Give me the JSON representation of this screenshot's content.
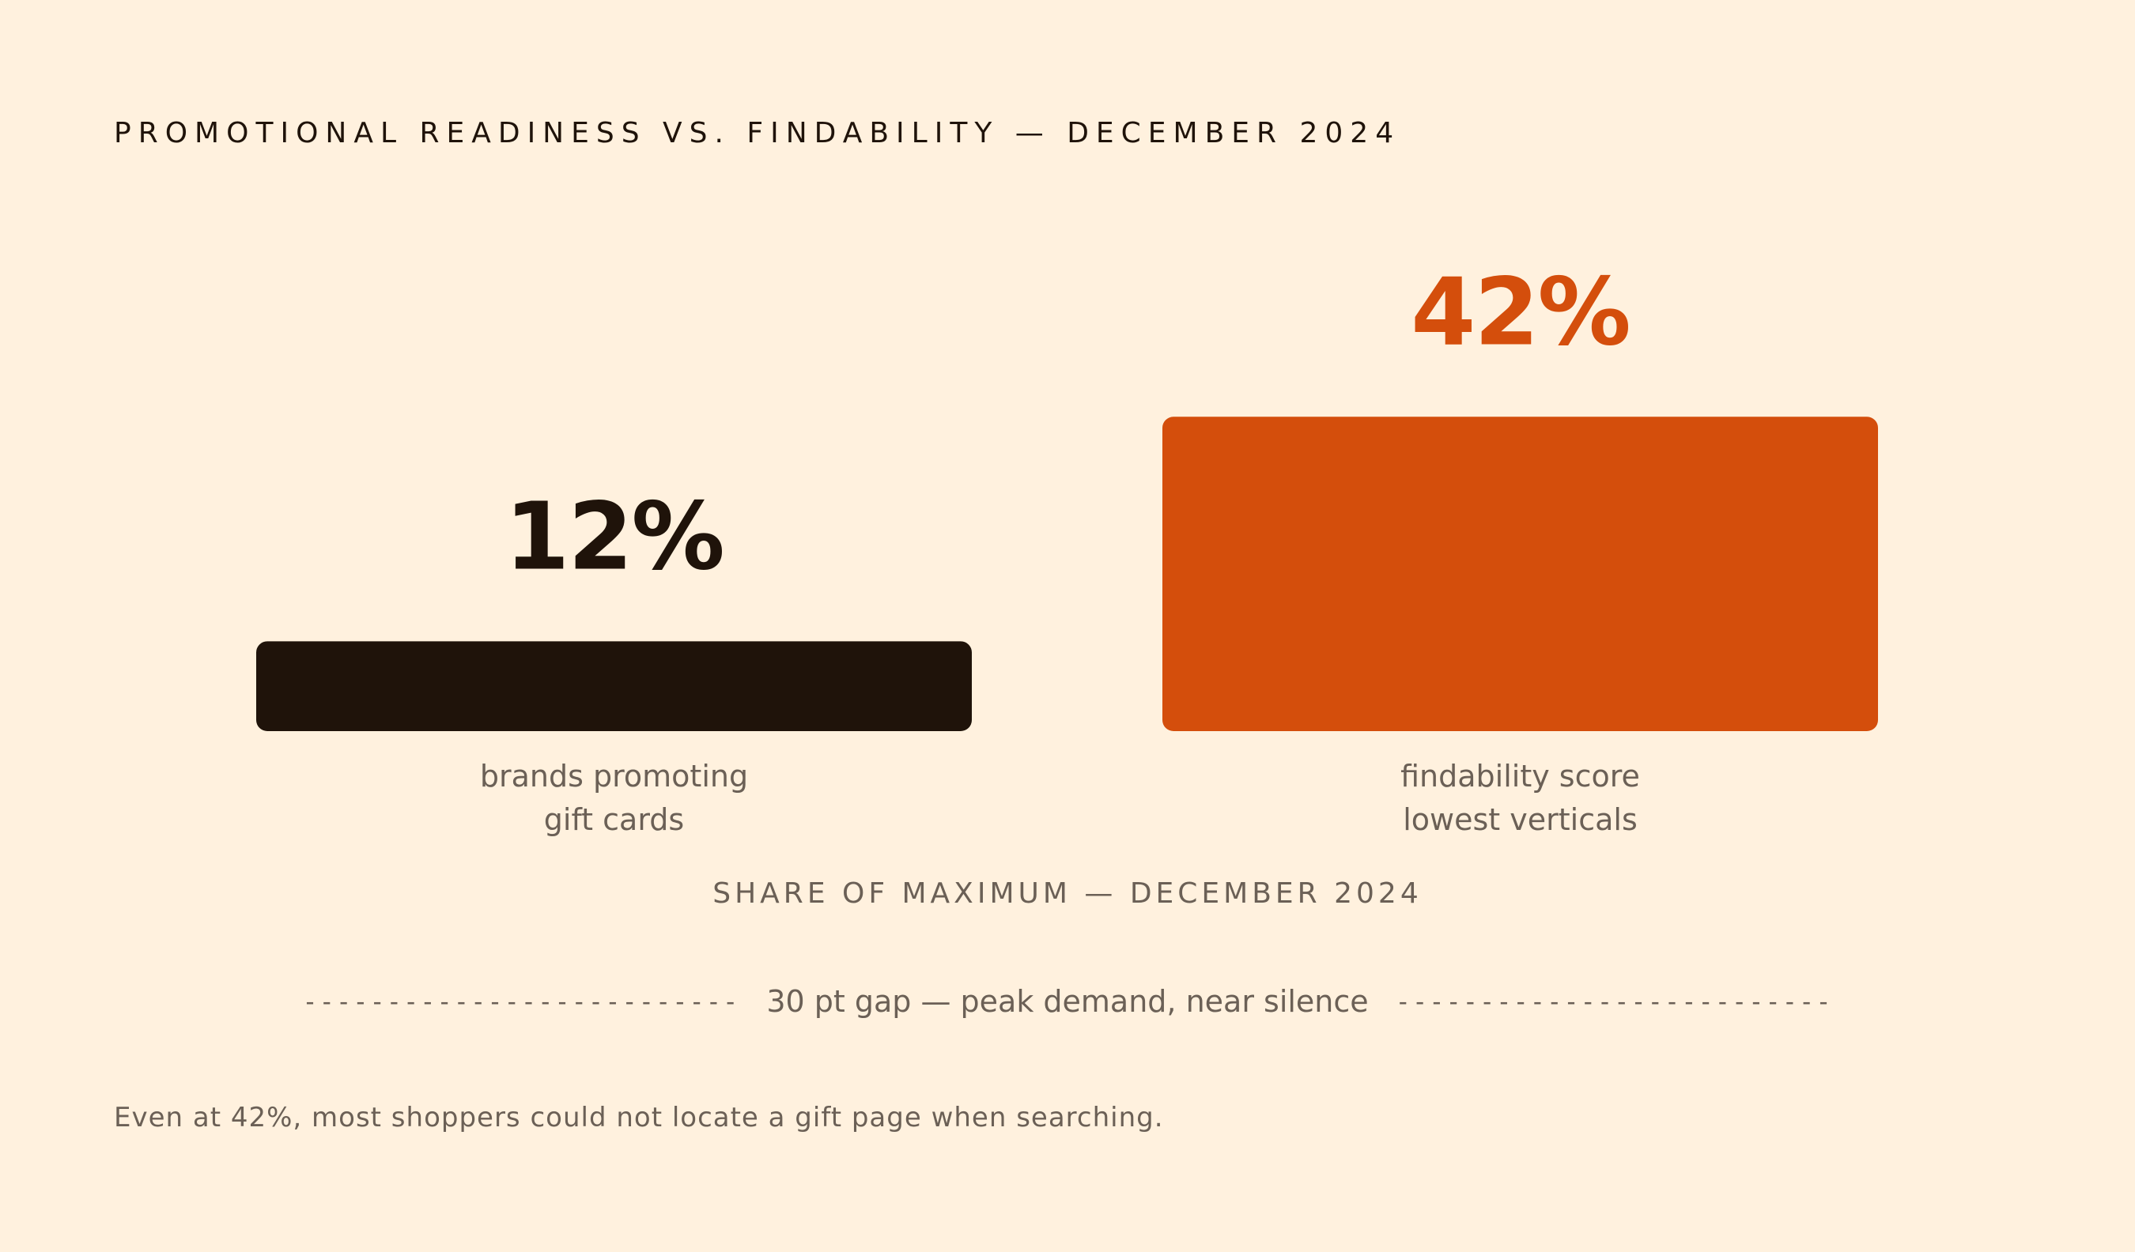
{
  "title": "PROMOTIONAL READINESS VS. FINDABILITY — DECEMBER 2024",
  "subtitle": "SHARE OF MAXIMUM — DECEMBER 2024",
  "gap": {
    "dashes_left": "--------------------------",
    "label": "30 pt gap — peak demand, near silence",
    "dashes_right": "--------------------------"
  },
  "footnote": "Even at 42%, most shoppers could not locate a gift page when searching.",
  "colors": {
    "background": "#FFF1DE",
    "dark": "#1F130A",
    "accent": "#D44E0C",
    "muted": "#6B6056"
  },
  "chart_data": {
    "type": "bar",
    "title": "PROMOTIONAL READINESS VS. FINDABILITY — DECEMBER 2024",
    "subtitle": "SHARE OF MAXIMUM — DECEMBER 2024",
    "unit": "%",
    "ylim": [
      0,
      100
    ],
    "grid": false,
    "categories": [
      [
        "brands promoting",
        "gift cards"
      ],
      [
        "findability score",
        "lowest verticals"
      ]
    ],
    "values": [
      12,
      42
    ],
    "value_labels": [
      "12%",
      "42%"
    ],
    "bar_colors": [
      "#1F130A",
      "#D44E0C"
    ],
    "annotation": "30 pt gap — peak demand, near silence"
  }
}
